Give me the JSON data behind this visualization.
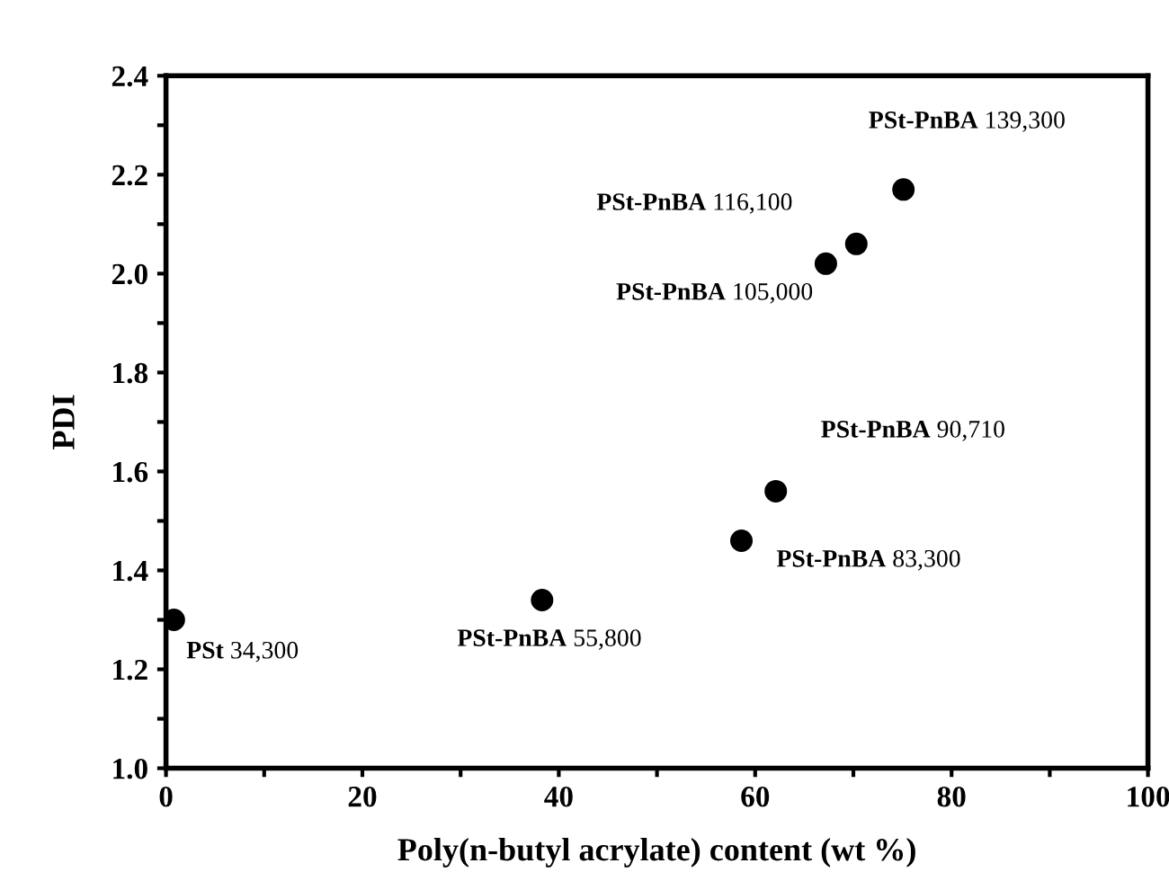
{
  "chart_data": {
    "type": "scatter",
    "xlabel": "Poly(n-butyl acrylate) content (wt %)",
    "ylabel": "PDI",
    "x": [
      0.8,
      38.3,
      58.6,
      62.1,
      67.2,
      70.3,
      75.1
    ],
    "series": [
      {
        "color": "#000000",
        "values": [
          1.3,
          1.34,
          1.46,
          1.56,
          2.02,
          2.06,
          2.17
        ]
      }
    ],
    "marker": "circle",
    "xlim": [
      0,
      100
    ],
    "xticks": [
      0,
      {
        "value": 10,
        "label": null
      },
      20,
      {
        "value": 30,
        "label": null
      },
      40,
      {
        "value": 50,
        "label": null
      },
      60,
      {
        "value": 70,
        "label": null
      },
      80,
      {
        "value": 90,
        "label": null
      },
      100
    ],
    "ylim": [
      1.0,
      2.4
    ],
    "yticks": [
      {
        "value": 1.0,
        "label": "1.0"
      },
      {
        "value": 1.1,
        "label": null
      },
      1.2,
      {
        "value": 1.3,
        "label": null
      },
      1.4,
      {
        "value": 1.5,
        "label": null
      },
      1.6,
      {
        "value": 1.7,
        "label": null
      },
      1.8,
      {
        "value": 1.9,
        "label": null
      },
      {
        "value": 2.0,
        "label": "2.0"
      },
      {
        "value": 2.1,
        "label": null
      },
      2.2,
      {
        "value": 2.3,
        "label": null
      },
      2.4
    ],
    "grid": false,
    "legend": false,
    "annotations": [
      {
        "text": "PSt 34,300",
        "x": 0.8,
        "y": 1.3
      },
      {
        "text": "PSt-PnBA 55,800",
        "x": 38.3,
        "y": 1.34
      },
      {
        "text": "PSt-PnBA 83,300",
        "x": 58.6,
        "y": 1.46
      },
      {
        "text": "PSt-PnBA 90,710",
        "x": 62.1,
        "y": 1.56
      },
      {
        "text": "PSt-PnBA 105,000",
        "x": 67.2,
        "y": 2.02
      },
      {
        "text": "PSt-PnBA 116,100",
        "x": 70.3,
        "y": 2.06
      },
      {
        "text": "PSt-PnBA 139,300",
        "x": 75.1,
        "y": 2.17
      }
    ]
  }
}
